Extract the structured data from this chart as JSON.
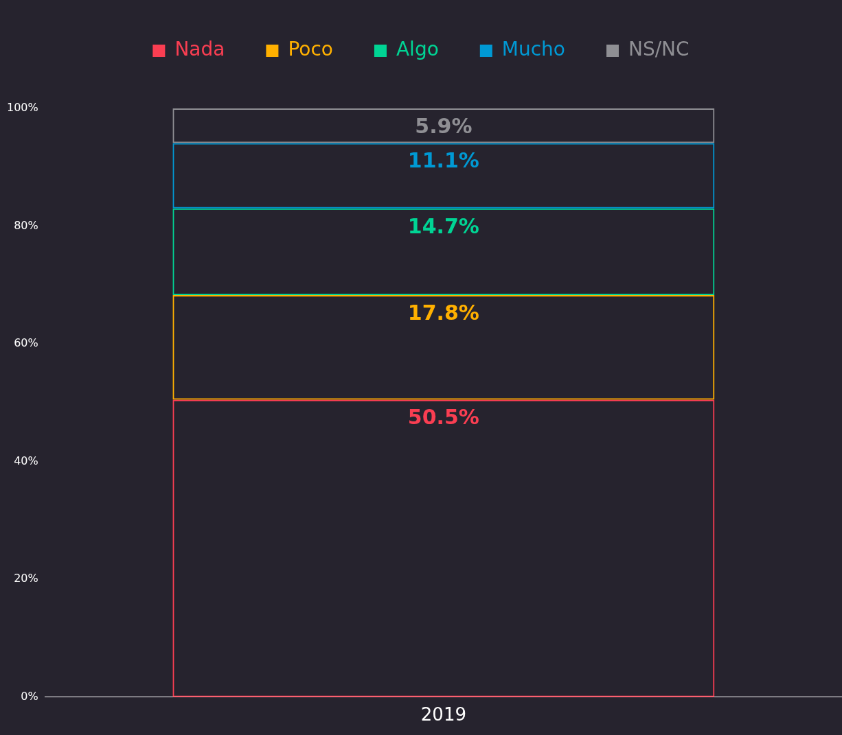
{
  "chart_data": {
    "type": "bar",
    "categories": [
      "2019"
    ],
    "stacked": true,
    "legend": "top",
    "ylim": [
      0,
      100
    ],
    "yticks": [
      {
        "value": 0,
        "label": "0%"
      },
      {
        "value": 20,
        "label": "20%"
      },
      {
        "value": 40,
        "label": "40%"
      },
      {
        "value": 60,
        "label": "60%"
      },
      {
        "value": 80,
        "label": "80%"
      },
      {
        "value": 100,
        "label": "100%"
      }
    ],
    "series": [
      {
        "name": "Nada",
        "color": "#fa3e52",
        "values": [
          50.5
        ],
        "value_labels": [
          "50.5%"
        ]
      },
      {
        "name": "Poco",
        "color": "#ffb000",
        "values": [
          17.8
        ],
        "value_labels": [
          "17.8%"
        ]
      },
      {
        "name": "Algo",
        "color": "#00d494",
        "values": [
          14.7
        ],
        "value_labels": [
          "14.7%"
        ]
      },
      {
        "name": "Mucho",
        "color": "#0099d4",
        "values": [
          11.1
        ],
        "value_labels": [
          "11.1%"
        ]
      },
      {
        "name": "NS/NC",
        "color": "#8f8f94",
        "values": [
          5.9
        ],
        "value_labels": [
          "5.9%"
        ]
      }
    ]
  }
}
